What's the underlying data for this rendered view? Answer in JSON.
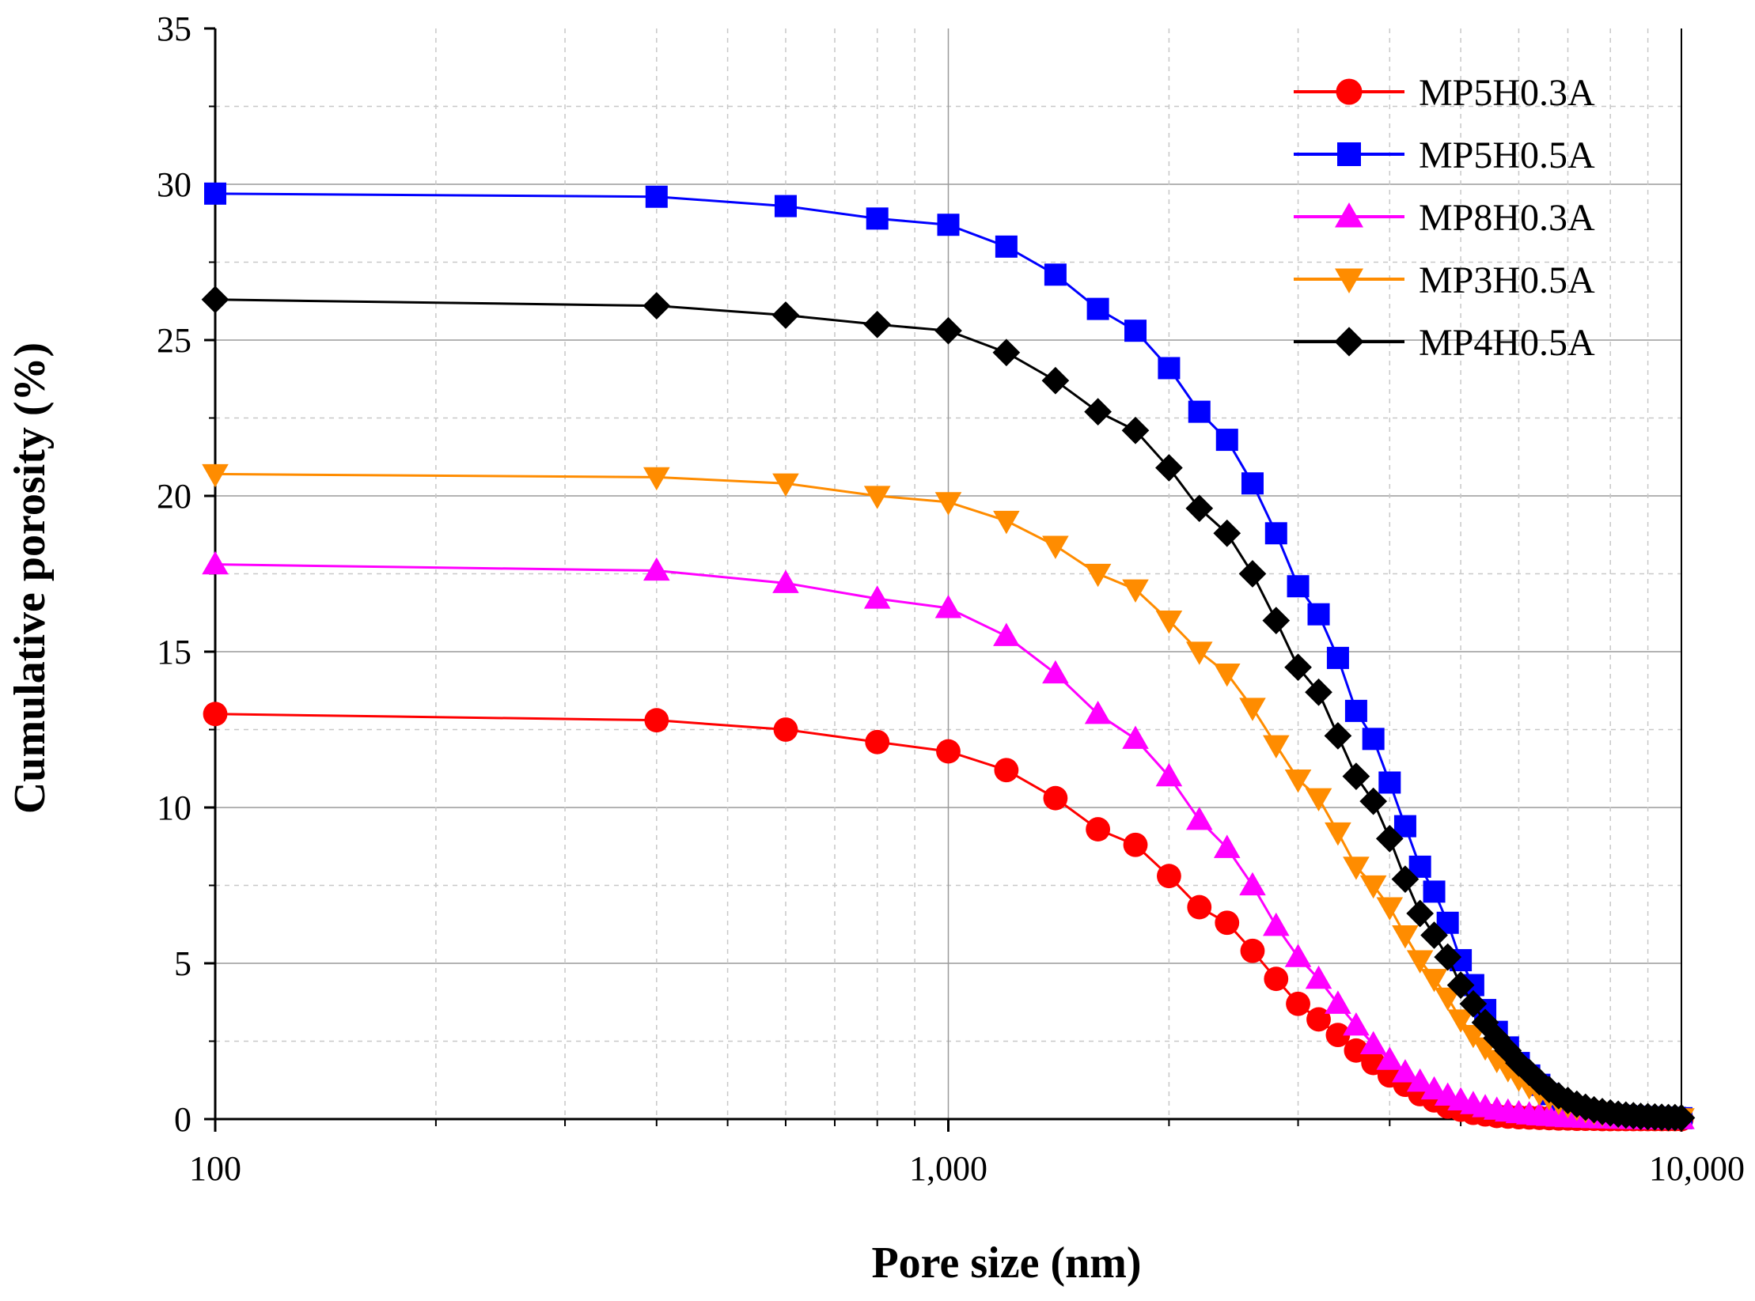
{
  "chart_data": {
    "type": "line",
    "title": "",
    "xlabel": "Pore size (nm)",
    "ylabel": "Cumulative porosity (%)",
    "xscale": "log",
    "xlim": [
      100,
      10000
    ],
    "ylim": [
      0,
      35
    ],
    "xticks": [
      100,
      1000,
      10000
    ],
    "xtick_labels": [
      "100",
      "1,000",
      "10,000"
    ],
    "yticks": [
      0,
      5,
      10,
      15,
      20,
      25,
      30,
      35
    ],
    "ytick_labels": [
      "0",
      "5",
      "10",
      "15",
      "20",
      "25",
      "30",
      "35"
    ],
    "grid": true,
    "legend_position": "top-right",
    "x": [
      100,
      400,
      600,
      800,
      1000,
      1200,
      1400,
      1600,
      1800,
      2000,
      2200,
      2400,
      2600,
      2800,
      3000,
      3200,
      3400,
      3600,
      3800,
      4000,
      4200,
      4400,
      4600,
      4800,
      5000,
      5200,
      5400,
      5600,
      5800,
      6000,
      6200,
      6400,
      6600,
      6800,
      7000,
      7200,
      7400,
      7600,
      7800,
      8000,
      8200,
      8400,
      8600,
      8800,
      9000,
      9200,
      9400,
      9600,
      9800,
      10000
    ],
    "series": [
      {
        "name": "MP5H0.3A",
        "color": "#ff0000",
        "marker": "circle",
        "values": [
          13.0,
          12.8,
          12.5,
          12.1,
          11.8,
          11.2,
          10.3,
          9.3,
          8.8,
          7.8,
          6.8,
          6.3,
          5.4,
          4.5,
          3.7,
          3.2,
          2.7,
          2.2,
          1.8,
          1.4,
          1.1,
          0.8,
          0.6,
          0.4,
          0.3,
          0.2,
          0.15,
          0.1,
          0.08,
          0.06,
          0.05,
          0.04,
          0.03,
          0.02,
          0.02,
          0.01,
          0.01,
          0.01,
          0.0,
          0.0,
          0.0,
          0.0,
          0.0,
          0.0,
          0.0,
          0.0,
          0.0,
          0.0,
          0.0,
          0.0
        ]
      },
      {
        "name": "MP5H0.5A",
        "color": "#0000ff",
        "marker": "square",
        "values": [
          29.7,
          29.6,
          29.3,
          28.9,
          28.7,
          28.0,
          27.1,
          26.0,
          25.3,
          24.1,
          22.7,
          21.8,
          20.4,
          18.8,
          17.1,
          16.2,
          14.8,
          13.1,
          12.2,
          10.8,
          9.4,
          8.1,
          7.3,
          6.3,
          5.1,
          4.3,
          3.5,
          2.8,
          2.3,
          1.8,
          1.4,
          1.1,
          0.8,
          0.6,
          0.45,
          0.35,
          0.28,
          0.22,
          0.18,
          0.15,
          0.12,
          0.1,
          0.08,
          0.07,
          0.06,
          0.05,
          0.05,
          0.04,
          0.04,
          0.03
        ]
      },
      {
        "name": "MP8H0.3A",
        "color": "#ff00ff",
        "marker": "triangle-up",
        "values": [
          17.8,
          17.6,
          17.2,
          16.7,
          16.4,
          15.5,
          14.3,
          13.0,
          12.2,
          11.0,
          9.6,
          8.7,
          7.5,
          6.2,
          5.2,
          4.5,
          3.7,
          3.0,
          2.4,
          1.9,
          1.5,
          1.2,
          0.95,
          0.75,
          0.6,
          0.48,
          0.38,
          0.3,
          0.24,
          0.19,
          0.15,
          0.12,
          0.1,
          0.08,
          0.06,
          0.05,
          0.04,
          0.03,
          0.02,
          0.02,
          0.01,
          0.01,
          0.0,
          0.0,
          0.0,
          0.0,
          0.0,
          0.0,
          0.0,
          0.0
        ]
      },
      {
        "name": "MP3H0.5A",
        "color": "#ff8c00",
        "marker": "triangle-down",
        "values": [
          20.7,
          20.6,
          20.4,
          20.0,
          19.8,
          19.2,
          18.4,
          17.5,
          17.0,
          16.0,
          15.0,
          14.3,
          13.2,
          12.0,
          10.9,
          10.3,
          9.2,
          8.1,
          7.5,
          6.8,
          5.9,
          5.1,
          4.5,
          3.9,
          3.2,
          2.7,
          2.3,
          1.9,
          1.6,
          1.3,
          1.05,
          0.85,
          0.7,
          0.55,
          0.45,
          0.36,
          0.29,
          0.23,
          0.18,
          0.15,
          0.12,
          0.1,
          0.08,
          0.07,
          0.06,
          0.05,
          0.04,
          0.04,
          0.03,
          0.03
        ]
      },
      {
        "name": "MP4H0.5A",
        "color": "#000000",
        "marker": "diamond",
        "values": [
          26.3,
          26.1,
          25.8,
          25.5,
          25.3,
          24.6,
          23.7,
          22.7,
          22.1,
          20.9,
          19.6,
          18.8,
          17.5,
          16.0,
          14.5,
          13.7,
          12.3,
          11.0,
          10.2,
          9.0,
          7.7,
          6.6,
          5.9,
          5.2,
          4.3,
          3.7,
          3.1,
          2.6,
          2.2,
          1.8,
          1.5,
          1.2,
          0.95,
          0.75,
          0.6,
          0.48,
          0.38,
          0.3,
          0.24,
          0.2,
          0.16,
          0.13,
          0.11,
          0.09,
          0.08,
          0.07,
          0.06,
          0.05,
          0.05,
          0.04
        ]
      }
    ]
  }
}
